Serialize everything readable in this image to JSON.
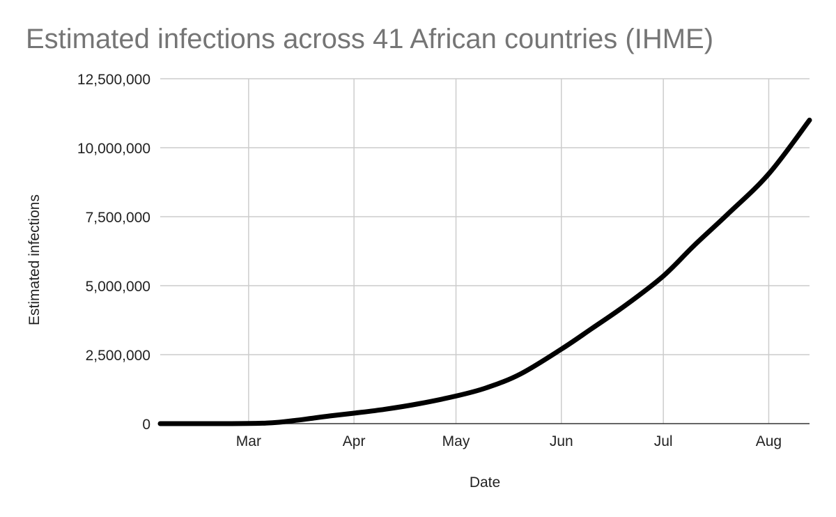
{
  "chart_data": {
    "type": "line",
    "title": "Estimated infections across 41 African countries (IHME)",
    "xlabel": "Date",
    "ylabel": "Estimated infections",
    "ylim": [
      0,
      12500000
    ],
    "y_ticks": [
      0,
      2500000,
      5000000,
      7500000,
      10000000,
      12500000
    ],
    "y_tick_labels": [
      "0",
      "2,500,000",
      "5,000,000",
      "7,500,000",
      "10,000,000",
      "12,500,000"
    ],
    "x_range": [
      "2020-02-04",
      "2020-08-13"
    ],
    "x_ticks": [
      "2020-03-01",
      "2020-04-01",
      "2020-05-01",
      "2020-06-01",
      "2020-07-01",
      "2020-08-01"
    ],
    "x_tick_labels": [
      "Mar",
      "Apr",
      "May",
      "Jun",
      "Jul",
      "Aug"
    ],
    "grid": true,
    "legend": "none",
    "line_color": "#000000",
    "series": [
      {
        "x": [
          "2020-02-04",
          "2020-02-15",
          "2020-02-25",
          "2020-03-05",
          "2020-03-10",
          "2020-03-15",
          "2020-03-20",
          "2020-03-25",
          "2020-04-01",
          "2020-04-10",
          "2020-04-20",
          "2020-05-01",
          "2020-05-10",
          "2020-05-20",
          "2020-06-01",
          "2020-06-10",
          "2020-06-20",
          "2020-07-01",
          "2020-07-10",
          "2020-07-20",
          "2020-08-01",
          "2020-08-13"
        ],
        "values": [
          0,
          0,
          0,
          15000,
          50000,
          120000,
          200000,
          280000,
          380000,
          520000,
          720000,
          1000000,
          1300000,
          1800000,
          2700000,
          3450000,
          4300000,
          5350000,
          6450000,
          7600000,
          9050000,
          11000000
        ]
      }
    ]
  }
}
